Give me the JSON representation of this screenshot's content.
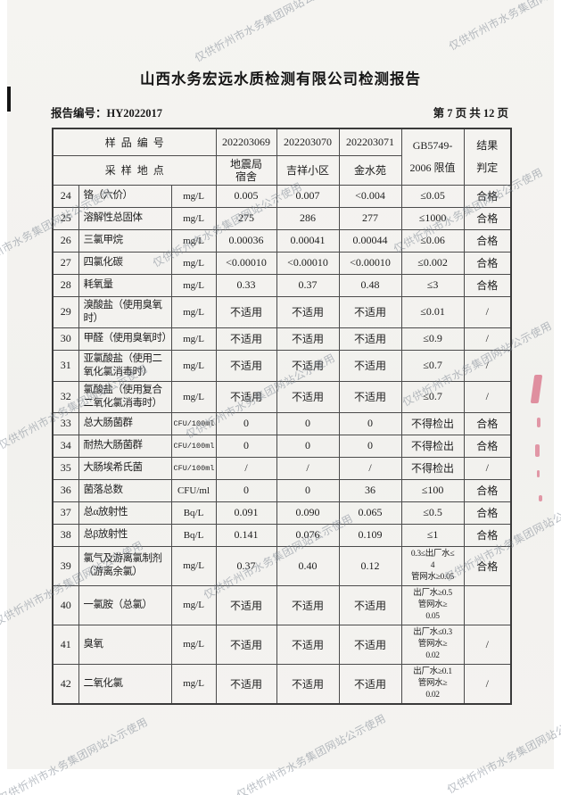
{
  "watermark": {
    "text": "仅供忻州市水务集团网站公示使用",
    "color": "#8894a4"
  },
  "header": {
    "title": "山西水务宏远水质检测有限公司检测报告",
    "report_no": "报告编号：HY2022017",
    "page_info": "第 7 页 共 12 页"
  },
  "table": {
    "header": {
      "sample_no_label": "样品编号",
      "location_label": "采样地点",
      "sample_ids": [
        "202203069",
        "202203070",
        "202203071"
      ],
      "locations": [
        "地震局\n宿舍",
        "吉祥小区",
        "金水苑"
      ],
      "limit_label": "GB5749-\n2006 限值",
      "result_label": "结果\n判定"
    },
    "rows": [
      {
        "no": "24",
        "name": "铬（六价）",
        "unit": "mg/L",
        "v1": "0.005",
        "v2": "0.007",
        "v3": "<0.004",
        "limit": "≤0.05",
        "result": "合格"
      },
      {
        "no": "25",
        "name": "溶解性总固体",
        "unit": "mg/L",
        "v1": "275",
        "v2": "286",
        "v3": "277",
        "limit": "≤1000",
        "result": "合格"
      },
      {
        "no": "26",
        "name": "三氯甲烷",
        "unit": "mg/L",
        "v1": "0.00036",
        "v2": "0.00041",
        "v3": "0.00044",
        "limit": "≤0.06",
        "result": "合格"
      },
      {
        "no": "27",
        "name": "四氯化碳",
        "unit": "mg/L",
        "v1": "<0.00010",
        "v2": "<0.00010",
        "v3": "<0.00010",
        "limit": "≤0.002",
        "result": "合格"
      },
      {
        "no": "28",
        "name": "耗氧量",
        "unit": "mg/L",
        "v1": "0.33",
        "v2": "0.37",
        "v3": "0.48",
        "limit": "≤3",
        "result": "合格"
      },
      {
        "no": "29",
        "name": "溴酸盐（使用臭氧\n时）",
        "unit": "mg/L",
        "v1": "不适用",
        "v2": "不适用",
        "v3": "不适用",
        "limit": "≤0.01",
        "result": "/"
      },
      {
        "no": "30",
        "name": "甲醛（使用臭氧时）",
        "unit": "mg/L",
        "v1": "不适用",
        "v2": "不适用",
        "v3": "不适用",
        "limit": "≤0.9",
        "result": "/"
      },
      {
        "no": "31",
        "name": "亚氯酸盐（使用二\n氧化氯消毒时）",
        "unit": "mg/L",
        "v1": "不适用",
        "v2": "不适用",
        "v3": "不适用",
        "limit": "≤0.7",
        "result": "/"
      },
      {
        "no": "32",
        "name": "氯酸盐（使用复合\n二氧化氯消毒时）",
        "unit": "mg/L",
        "v1": "不适用",
        "v2": "不适用",
        "v3": "不适用",
        "limit": "≤0.7",
        "result": "/"
      },
      {
        "no": "33",
        "name": "总大肠菌群",
        "unit": "CFU/100ml",
        "v1": "0",
        "v2": "0",
        "v3": "0",
        "limit": "不得检出",
        "result": "合格"
      },
      {
        "no": "34",
        "name": "耐热大肠菌群",
        "unit": "CFU/100ml",
        "v1": "0",
        "v2": "0",
        "v3": "0",
        "limit": "不得检出",
        "result": "合格"
      },
      {
        "no": "35",
        "name": "大肠埃希氏菌",
        "unit": "CFU/100ml",
        "v1": "/",
        "v2": "/",
        "v3": "/",
        "limit": "不得检出",
        "result": "/"
      },
      {
        "no": "36",
        "name": "菌落总数",
        "unit": "CFU/ml",
        "v1": "0",
        "v2": "0",
        "v3": "36",
        "limit": "≤100",
        "result": "合格"
      },
      {
        "no": "37",
        "name": "总α放射性",
        "unit": "Bq/L",
        "v1": "0.091",
        "v2": "0.090",
        "v3": "0.065",
        "limit": "≤0.5",
        "result": "合格"
      },
      {
        "no": "38",
        "name": "总β放射性",
        "unit": "Bq/L",
        "v1": "0.141",
        "v2": "0.076",
        "v3": "0.109",
        "limit": "≤1",
        "result": "合格"
      },
      {
        "no": "39",
        "name": "氯气及游离氯制剂\n（游离余氯）",
        "unit": "mg/L",
        "v1": "0.37",
        "v2": "0.40",
        "v3": "0.12",
        "limit": "0.3≤出厂水≤\n4\n管网水≥0.05",
        "result": "合格"
      },
      {
        "no": "40",
        "name": "一氯胺（总氯）",
        "unit": "mg/L",
        "v1": "不适用",
        "v2": "不适用",
        "v3": "不适用",
        "limit": "出厂水≥0.5\n管网水≥\n0.05",
        "result": ""
      },
      {
        "no": "41",
        "name": "臭氧",
        "unit": "mg/L",
        "v1": "不适用",
        "v2": "不适用",
        "v3": "不适用",
        "limit": "出厂水≤0.3\n管网水≥\n0.02",
        "result": "/"
      },
      {
        "no": "42",
        "name": "二氧化氯",
        "unit": "mg/L",
        "v1": "不适用",
        "v2": "不适用",
        "v3": "不适用",
        "limit": "出厂水≥0.1\n管网水≥\n0.02",
        "result": "/"
      }
    ]
  }
}
